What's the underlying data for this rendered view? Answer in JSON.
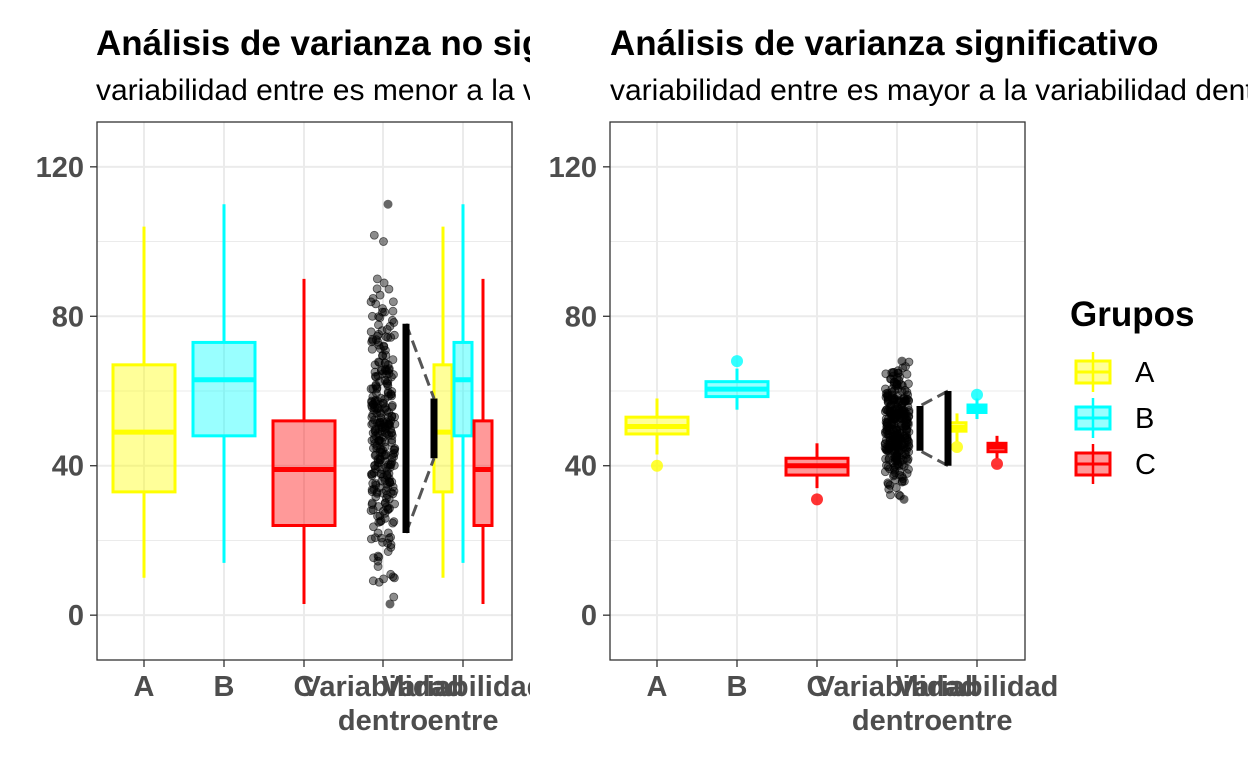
{
  "legend": {
    "title": "Grupos",
    "entries": [
      {
        "name": "A",
        "color": "#ffff00",
        "icon": "boxplot-key-icon"
      },
      {
        "name": "B",
        "color": "#00ffff",
        "icon": "boxplot-key-icon"
      },
      {
        "name": "C",
        "color": "#ff0000",
        "icon": "boxplot-key-icon"
      }
    ]
  },
  "chart_data": [
    {
      "type": "boxplot",
      "title": "Análisis de varianza no significativo",
      "subtitle": "variabilidad entre es menor a la variabilidad dentro",
      "xlabel": "",
      "ylabel": "",
      "ylim": [
        -12,
        132
      ],
      "y_ticks": [
        0,
        40,
        80,
        120
      ],
      "grid": true,
      "categories": [
        "A",
        "B",
        "C",
        "Variabilidad\ndentro",
        "Variabilidad\nentre"
      ],
      "groups": [
        {
          "name": "A",
          "color": "#ffff00",
          "min": 10,
          "q1": 33,
          "median": 49,
          "q3": 67,
          "max": 104,
          "outliers": []
        },
        {
          "name": "B",
          "color": "#00ffff",
          "min": 14,
          "q1": 48,
          "median": 63,
          "q3": 73,
          "max": 110,
          "outliers": []
        },
        {
          "name": "C",
          "color": "#ff0000",
          "min": 3,
          "q1": 24,
          "median": 39,
          "q3": 52,
          "max": 90,
          "outliers": []
        }
      ],
      "within": {
        "count": 300,
        "min": 3,
        "max": 110,
        "mean": 50,
        "sd": 18,
        "bar_outer": [
          22,
          78
        ],
        "bar_inner": [
          42,
          58
        ]
      },
      "between": {
        "scale": 1.0
      }
    },
    {
      "type": "boxplot",
      "title": "Análisis de varianza significativo",
      "subtitle": "variabilidad entre es mayor a la variabilidad dentro",
      "xlabel": "",
      "ylabel": "",
      "ylim": [
        -12,
        132
      ],
      "y_ticks": [
        0,
        40,
        80,
        120
      ],
      "grid": true,
      "categories": [
        "A",
        "B",
        "C",
        "Variabilidad\ndentro",
        "Variabilidad\nentre"
      ],
      "groups": [
        {
          "name": "A",
          "color": "#ffff00",
          "min": 43,
          "q1": 48.5,
          "median": 50.5,
          "q3": 53,
          "max": 58,
          "outliers": [
            40
          ]
        },
        {
          "name": "B",
          "color": "#00ffff",
          "min": 55,
          "q1": 58.5,
          "median": 60.5,
          "q3": 62.5,
          "max": 66,
          "outliers": [
            68
          ]
        },
        {
          "name": "C",
          "color": "#ff0000",
          "min": 34,
          "q1": 37.5,
          "median": 40,
          "q3": 42,
          "max": 46,
          "outliers": [
            31
          ]
        }
      ],
      "within": {
        "count": 300,
        "min": 31,
        "max": 68,
        "mean": 50,
        "sd": 8,
        "bar_outer": [
          40,
          60
        ],
        "bar_inner": [
          44,
          56
        ]
      },
      "between": {
        "scale": 0.5
      }
    }
  ]
}
